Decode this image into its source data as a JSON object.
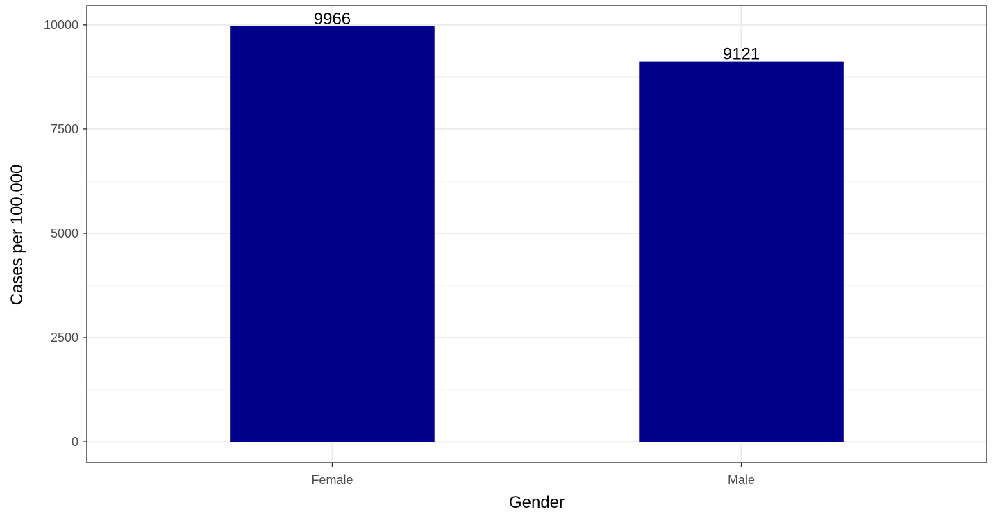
{
  "chart_data": {
    "type": "bar",
    "categories": [
      "Female",
      "Male"
    ],
    "values": [
      9966,
      9121
    ],
    "data_labels": [
      "9966",
      "9121"
    ],
    "xlabel": "Gender",
    "ylabel": "Cases per 100,000",
    "ylim": [
      -498.3,
      10464.3
    ],
    "yticks": [
      0,
      2500,
      5000,
      7500,
      10000
    ],
    "ytick_labels": [
      "0",
      "2500",
      "5000",
      "7500",
      "10000"
    ],
    "grid": true,
    "bar_color": "#00008B",
    "grid_color": "#EBEBEB",
    "panel_border_color": "#333333"
  }
}
